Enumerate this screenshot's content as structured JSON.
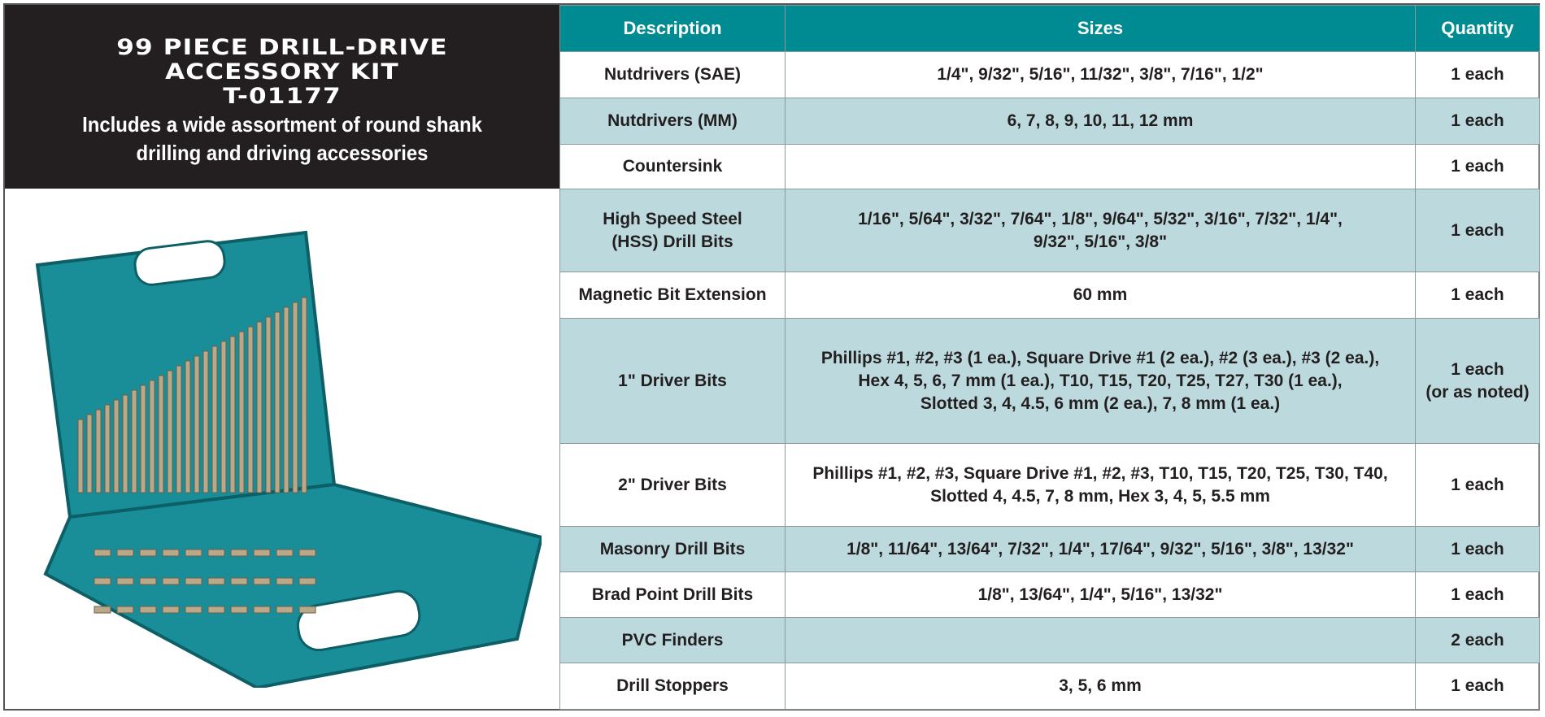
{
  "title": {
    "line1": "99 PIECE DRILL-DRIVE",
    "line2": "ACCESSORY KIT",
    "model": "T-01177",
    "description_line1": "Includes a wide assortment of round shank",
    "description_line2": "drilling and driving accessories"
  },
  "colors": {
    "header": "#008b93",
    "alt_row": "#bcdadd",
    "title_bg": "#231f20",
    "case": "#1a8e98"
  },
  "table": {
    "headers": [
      "Description",
      "Sizes",
      "Quantity"
    ],
    "rows": [
      {
        "description": [
          "Nutdrivers (SAE)"
        ],
        "sizes": [
          "1/4\", 9/32\", 5/16\", 11/32\", 3/8\", 7/16\", 1/2\""
        ],
        "quantity": [
          "1 each"
        ]
      },
      {
        "description": [
          "Nutdrivers (MM)"
        ],
        "sizes": [
          "6, 7, 8, 9, 10, 11, 12 mm"
        ],
        "quantity": [
          "1 each"
        ]
      },
      {
        "description": [
          "Countersink"
        ],
        "sizes": [],
        "quantity": [
          "1 each"
        ]
      },
      {
        "description": [
          "High Speed Steel",
          "(HSS) Drill Bits"
        ],
        "sizes": [
          "1/16\", 5/64\", 3/32\", 7/64\", 1/8\", 9/64\", 5/32\", 3/16\", 7/32\", 1/4\",",
          "9/32\", 5/16\", 3/8\""
        ],
        "quantity": [
          "1 each"
        ]
      },
      {
        "description": [
          "Magnetic Bit Extension"
        ],
        "sizes": [
          "60 mm"
        ],
        "quantity": [
          "1 each"
        ]
      },
      {
        "description": [
          "1\" Driver Bits"
        ],
        "sizes": [
          "Phillips #1, #2, #3 (1 ea.), Square Drive #1 (2 ea.), #2 (3 ea.), #3 (2 ea.),",
          "Hex 4, 5, 6, 7 mm (1 ea.), T10, T15, T20, T25, T27, T30 (1 ea.),",
          "Slotted 3, 4, 4.5, 6 mm (2 ea.), 7, 8 mm (1 ea.)"
        ],
        "quantity": [
          "1 each",
          "(or as noted)"
        ]
      },
      {
        "description": [
          "2\" Driver Bits"
        ],
        "sizes": [
          "Phillips #1, #2, #3, Square Drive #1, #2, #3, T10, T15, T20, T25, T30, T40,",
          "Slotted 4, 4.5, 7, 8 mm, Hex 3, 4, 5, 5.5 mm"
        ],
        "quantity": [
          "1 each"
        ]
      },
      {
        "description": [
          "Masonry Drill Bits"
        ],
        "sizes": [
          "1/8\", 11/64\", 13/64\", 7/32\", 1/4\", 17/64\", 9/32\", 5/16\", 3/8\", 13/32\""
        ],
        "quantity": [
          "1 each"
        ]
      },
      {
        "description": [
          "Brad Point Drill Bits"
        ],
        "sizes": [
          "1/8\", 13/64\", 1/4\", 5/16\", 13/32\""
        ],
        "quantity": [
          "1 each"
        ]
      },
      {
        "description": [
          "PVC Finders"
        ],
        "sizes": [],
        "quantity": [
          "2 each"
        ]
      },
      {
        "description": [
          "Drill Stoppers"
        ],
        "sizes": [
          "3, 5, 6 mm"
        ],
        "quantity": [
          "1 each"
        ]
      }
    ]
  }
}
